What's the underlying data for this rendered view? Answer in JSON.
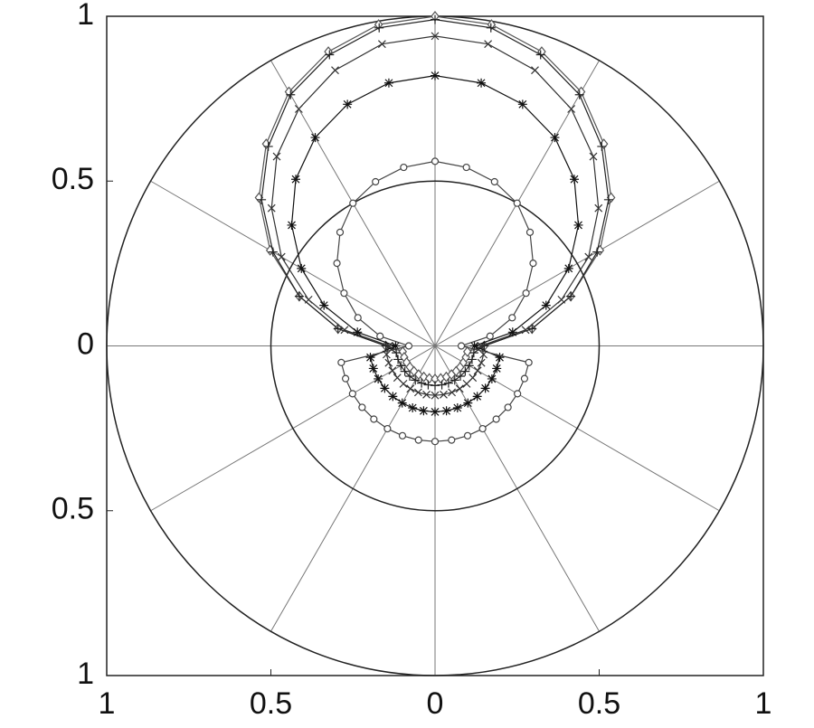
{
  "chart_data": {
    "type": "polar",
    "theta": [
      0,
      10,
      20,
      30,
      40,
      50,
      60,
      70,
      80,
      90,
      100,
      110,
      120,
      130,
      140,
      150,
      160,
      170,
      180,
      190,
      200,
      210,
      220,
      230,
      240,
      250,
      260,
      270,
      280,
      290,
      300,
      310,
      320,
      330,
      340,
      350
    ],
    "series": [
      {
        "marker": "diamond",
        "color": "#555555",
        "values": [
          0.15,
          0.3,
          0.44,
          0.58,
          0.7,
          0.8,
          0.89,
          0.95,
          0.99,
          1.0,
          0.99,
          0.95,
          0.89,
          0.8,
          0.7,
          0.58,
          0.44,
          0.3,
          0.15,
          0.1,
          0.1,
          0.1,
          0.1,
          0.1,
          0.1,
          0.1,
          0.1,
          0.1,
          0.1,
          0.1,
          0.1,
          0.1,
          0.1,
          0.1,
          0.1,
          0.1
        ]
      },
      {
        "marker": "plus",
        "color": "#222222",
        "values": [
          0.15,
          0.3,
          0.44,
          0.57,
          0.69,
          0.79,
          0.88,
          0.94,
          0.98,
          0.99,
          0.98,
          0.94,
          0.88,
          0.79,
          0.69,
          0.57,
          0.44,
          0.3,
          0.15,
          0.12,
          0.12,
          0.12,
          0.12,
          0.12,
          0.12,
          0.12,
          0.12,
          0.12,
          0.12,
          0.12,
          0.12,
          0.12,
          0.12,
          0.12,
          0.12,
          0.12
        ]
      },
      {
        "marker": "x",
        "color": "#333333",
        "values": [
          0.14,
          0.28,
          0.41,
          0.54,
          0.65,
          0.75,
          0.83,
          0.89,
          0.93,
          0.94,
          0.93,
          0.89,
          0.83,
          0.75,
          0.65,
          0.54,
          0.41,
          0.28,
          0.14,
          0.15,
          0.15,
          0.15,
          0.15,
          0.15,
          0.15,
          0.15,
          0.15,
          0.15,
          0.15,
          0.15,
          0.15,
          0.15,
          0.15,
          0.15,
          0.15,
          0.15
        ]
      },
      {
        "marker": "asterisk",
        "color": "#111111",
        "values": [
          0.12,
          0.24,
          0.36,
          0.47,
          0.57,
          0.66,
          0.73,
          0.78,
          0.81,
          0.82,
          0.81,
          0.78,
          0.73,
          0.66,
          0.57,
          0.47,
          0.36,
          0.24,
          0.12,
          0.2,
          0.2,
          0.2,
          0.2,
          0.2,
          0.2,
          0.2,
          0.2,
          0.2,
          0.2,
          0.2,
          0.2,
          0.2,
          0.2,
          0.2,
          0.2,
          0.2
        ]
      },
      {
        "marker": "circle",
        "color": "#444444",
        "values": [
          0.08,
          0.17,
          0.25,
          0.32,
          0.39,
          0.45,
          0.5,
          0.53,
          0.55,
          0.56,
          0.55,
          0.53,
          0.5,
          0.45,
          0.39,
          0.32,
          0.25,
          0.17,
          0.08,
          0.29,
          0.29,
          0.29,
          0.29,
          0.29,
          0.29,
          0.29,
          0.29,
          0.29,
          0.29,
          0.29,
          0.29,
          0.29,
          0.29,
          0.29,
          0.29,
          0.29
        ]
      }
    ],
    "rticks": [
      0.5,
      1
    ],
    "angle_grid_step": 30,
    "xlim": [
      -1,
      1
    ],
    "ylim": [
      -1,
      1
    ],
    "xticks": [
      {
        "value": -1,
        "label": "1"
      },
      {
        "value": -0.5,
        "label": "0.5"
      },
      0,
      0.5,
      1
    ],
    "yticks": [
      {
        "value": -1,
        "label": "1"
      },
      {
        "value": -0.5,
        "label": "0.5"
      },
      0,
      0.5,
      1
    ]
  }
}
